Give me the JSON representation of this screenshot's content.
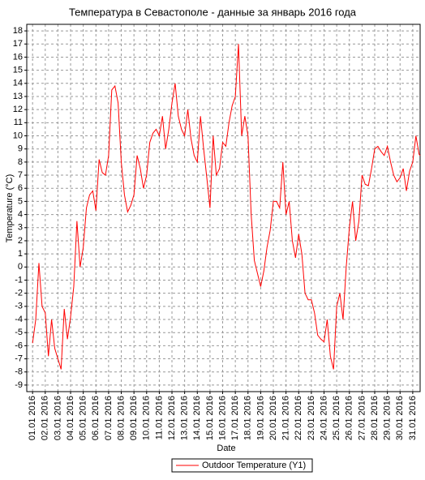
{
  "chart_data": {
    "type": "line",
    "title": "Температура в Севастополе - данные за январь 2016 года",
    "y_label": "Temperature (°C)",
    "x_label": "Date",
    "grid": true,
    "legend": "bottom",
    "ylim": [
      -9.5,
      18.5
    ],
    "yticks": [
      -9,
      -8,
      -7,
      -6,
      -5,
      -4,
      -3,
      -2,
      -1,
      0,
      1,
      2,
      3,
      4,
      5,
      6,
      7,
      8,
      9,
      10,
      11,
      12,
      13,
      14,
      15,
      16,
      17,
      18
    ],
    "xlim": [
      "2015-12-31T13:00",
      "2016-01-31T14:00"
    ],
    "xticks": [
      {
        "value": "2016-01-01",
        "label": "01.01 2016"
      },
      {
        "value": "2016-01-02",
        "label": "02.01 2016"
      },
      {
        "value": "2016-01-03",
        "label": "03.01 2016"
      },
      {
        "value": "2016-01-04",
        "label": "04.01 2016"
      },
      {
        "value": "2016-01-05",
        "label": "05.01 2016"
      },
      {
        "value": "2016-01-06",
        "label": "06.01 2016"
      },
      {
        "value": "2016-01-07",
        "label": "07.01 2016"
      },
      {
        "value": "2016-01-08",
        "label": "08.01 2016"
      },
      {
        "value": "2016-01-09",
        "label": "09.01 2016"
      },
      {
        "value": "2016-01-10",
        "label": "10.01 2016"
      },
      {
        "value": "2016-01-11",
        "label": "11.01 2016"
      },
      {
        "value": "2016-01-12",
        "label": "12.01 2016"
      },
      {
        "value": "2016-01-13",
        "label": "13.01 2016"
      },
      {
        "value": "2016-01-14",
        "label": "14.01 2016"
      },
      {
        "value": "2016-01-15",
        "label": "15.01 2016"
      },
      {
        "value": "2016-01-16",
        "label": "16.01 2016"
      },
      {
        "value": "2016-01-17",
        "label": "17.01 2016"
      },
      {
        "value": "2016-01-18",
        "label": "18.01 2016"
      },
      {
        "value": "2016-01-19",
        "label": "19.01 2016"
      },
      {
        "value": "2016-01-20",
        "label": "20.01 2016"
      },
      {
        "value": "2016-01-21",
        "label": "21.01 2016"
      },
      {
        "value": "2016-01-22",
        "label": "22.01 2016"
      },
      {
        "value": "2016-01-23",
        "label": "23.01 2016"
      },
      {
        "value": "2016-01-24",
        "label": "24.01 2016"
      },
      {
        "value": "2016-01-25",
        "label": "25.01 2016"
      },
      {
        "value": "2016-01-26",
        "label": "26.01 2016"
      },
      {
        "value": "2016-01-27",
        "label": "27.01 2016"
      },
      {
        "value": "2016-01-28",
        "label": "28.01 2016"
      },
      {
        "value": "2016-01-29",
        "label": "29.01 2016"
      },
      {
        "value": "2016-01-30",
        "label": "30.01 2016"
      },
      {
        "value": "2016-01-31",
        "label": "31.01 2016"
      }
    ],
    "x": [
      "2016-01-01T00:00",
      "2016-01-01T06:00",
      "2016-01-01T12:00",
      "2016-01-01T18:00",
      "2016-01-02T00:00",
      "2016-01-02T06:00",
      "2016-01-02T12:00",
      "2016-01-02T18:00",
      "2016-01-03T00:00",
      "2016-01-03T06:00",
      "2016-01-03T12:00",
      "2016-01-03T18:00",
      "2016-01-04T00:00",
      "2016-01-04T06:00",
      "2016-01-04T12:00",
      "2016-01-04T18:00",
      "2016-01-05T00:00",
      "2016-01-05T06:00",
      "2016-01-05T12:00",
      "2016-01-05T18:00",
      "2016-01-06T00:00",
      "2016-01-06T06:00",
      "2016-01-06T12:00",
      "2016-01-06T18:00",
      "2016-01-07T00:00",
      "2016-01-07T06:00",
      "2016-01-07T12:00",
      "2016-01-07T18:00",
      "2016-01-08T00:00",
      "2016-01-08T06:00",
      "2016-01-08T12:00",
      "2016-01-08T18:00",
      "2016-01-09T00:00",
      "2016-01-09T06:00",
      "2016-01-09T12:00",
      "2016-01-09T18:00",
      "2016-01-10T00:00",
      "2016-01-10T06:00",
      "2016-01-10T12:00",
      "2016-01-10T18:00",
      "2016-01-11T00:00",
      "2016-01-11T06:00",
      "2016-01-11T12:00",
      "2016-01-11T18:00",
      "2016-01-12T00:00",
      "2016-01-12T06:00",
      "2016-01-12T12:00",
      "2016-01-12T18:00",
      "2016-01-13T00:00",
      "2016-01-13T06:00",
      "2016-01-13T12:00",
      "2016-01-13T18:00",
      "2016-01-14T00:00",
      "2016-01-14T06:00",
      "2016-01-14T12:00",
      "2016-01-14T18:00",
      "2016-01-15T00:00",
      "2016-01-15T06:00",
      "2016-01-15T12:00",
      "2016-01-15T18:00",
      "2016-01-16T00:00",
      "2016-01-16T06:00",
      "2016-01-16T12:00",
      "2016-01-16T18:00",
      "2016-01-17T00:00",
      "2016-01-17T06:00",
      "2016-01-17T12:00",
      "2016-01-17T18:00",
      "2016-01-18T00:00",
      "2016-01-18T06:00",
      "2016-01-18T12:00",
      "2016-01-18T18:00",
      "2016-01-19T00:00",
      "2016-01-19T06:00",
      "2016-01-19T12:00",
      "2016-01-19T18:00",
      "2016-01-20T00:00",
      "2016-01-20T06:00",
      "2016-01-20T12:00",
      "2016-01-20T18:00",
      "2016-01-21T00:00",
      "2016-01-21T06:00",
      "2016-01-21T12:00",
      "2016-01-21T18:00",
      "2016-01-22T00:00",
      "2016-01-22T06:00",
      "2016-01-22T12:00",
      "2016-01-22T18:00",
      "2016-01-23T00:00",
      "2016-01-23T06:00",
      "2016-01-23T12:00",
      "2016-01-23T18:00",
      "2016-01-24T00:00",
      "2016-01-24T06:00",
      "2016-01-24T12:00",
      "2016-01-24T18:00",
      "2016-01-25T00:00",
      "2016-01-25T06:00",
      "2016-01-25T12:00",
      "2016-01-25T18:00",
      "2016-01-26T00:00",
      "2016-01-26T06:00",
      "2016-01-26T12:00",
      "2016-01-26T18:00",
      "2016-01-27T00:00",
      "2016-01-27T06:00",
      "2016-01-27T12:00",
      "2016-01-27T18:00",
      "2016-01-28T00:00",
      "2016-01-28T06:00",
      "2016-01-28T12:00",
      "2016-01-28T18:00",
      "2016-01-29T00:00",
      "2016-01-29T06:00",
      "2016-01-29T12:00",
      "2016-01-29T18:00",
      "2016-01-30T00:00",
      "2016-01-30T06:00",
      "2016-01-30T12:00",
      "2016-01-30T18:00",
      "2016-01-31T00:00",
      "2016-01-31T06:00",
      "2016-01-31T12:00",
      "2016-01-31T14:00"
    ],
    "series": [
      {
        "name": "Outdoor Temperature (Y1)",
        "color": "#ff0000",
        "values": [
          -5.8,
          -4,
          0.3,
          -3,
          -3.5,
          -6.8,
          -4,
          -6.2,
          -7,
          -7.8,
          -3.2,
          -5.5,
          -3.8,
          -1.5,
          3.5,
          0,
          1.5,
          4.5,
          5.5,
          5.8,
          4.3,
          8.2,
          7.2,
          7,
          8.5,
          13.5,
          13.8,
          12.5,
          8,
          5.5,
          4.2,
          4.7,
          5.5,
          8.5,
          7.5,
          6,
          7,
          9.5,
          10.2,
          10.5,
          10,
          11.5,
          9,
          10.5,
          12.5,
          14,
          11.5,
          10.5,
          10,
          12,
          9.8,
          8.5,
          8,
          11.5,
          9,
          6.8,
          4.5,
          10,
          7,
          7.5,
          9.5,
          9.2,
          11,
          12.3,
          13,
          17,
          10,
          11.5,
          10,
          4,
          0.5,
          -0.5,
          -1.5,
          -0.3,
          1.5,
          2.8,
          5,
          5,
          4.5,
          8,
          4,
          5,
          2,
          0.7,
          2.5,
          1,
          -2,
          -2.5,
          -2.5,
          -3.5,
          -5.2,
          -5.5,
          -5.7,
          -4,
          -6.8,
          -7.8,
          -3,
          -2,
          -4,
          0,
          3,
          5,
          2,
          3.5,
          7,
          6.3,
          6.2,
          7.5,
          9,
          9.2,
          8.8,
          8.5,
          9.2,
          8,
          7,
          6.5,
          6.8,
          7.5,
          5.8,
          7.3,
          8,
          10,
          8.6,
          8.5
        ]
      }
    ]
  }
}
